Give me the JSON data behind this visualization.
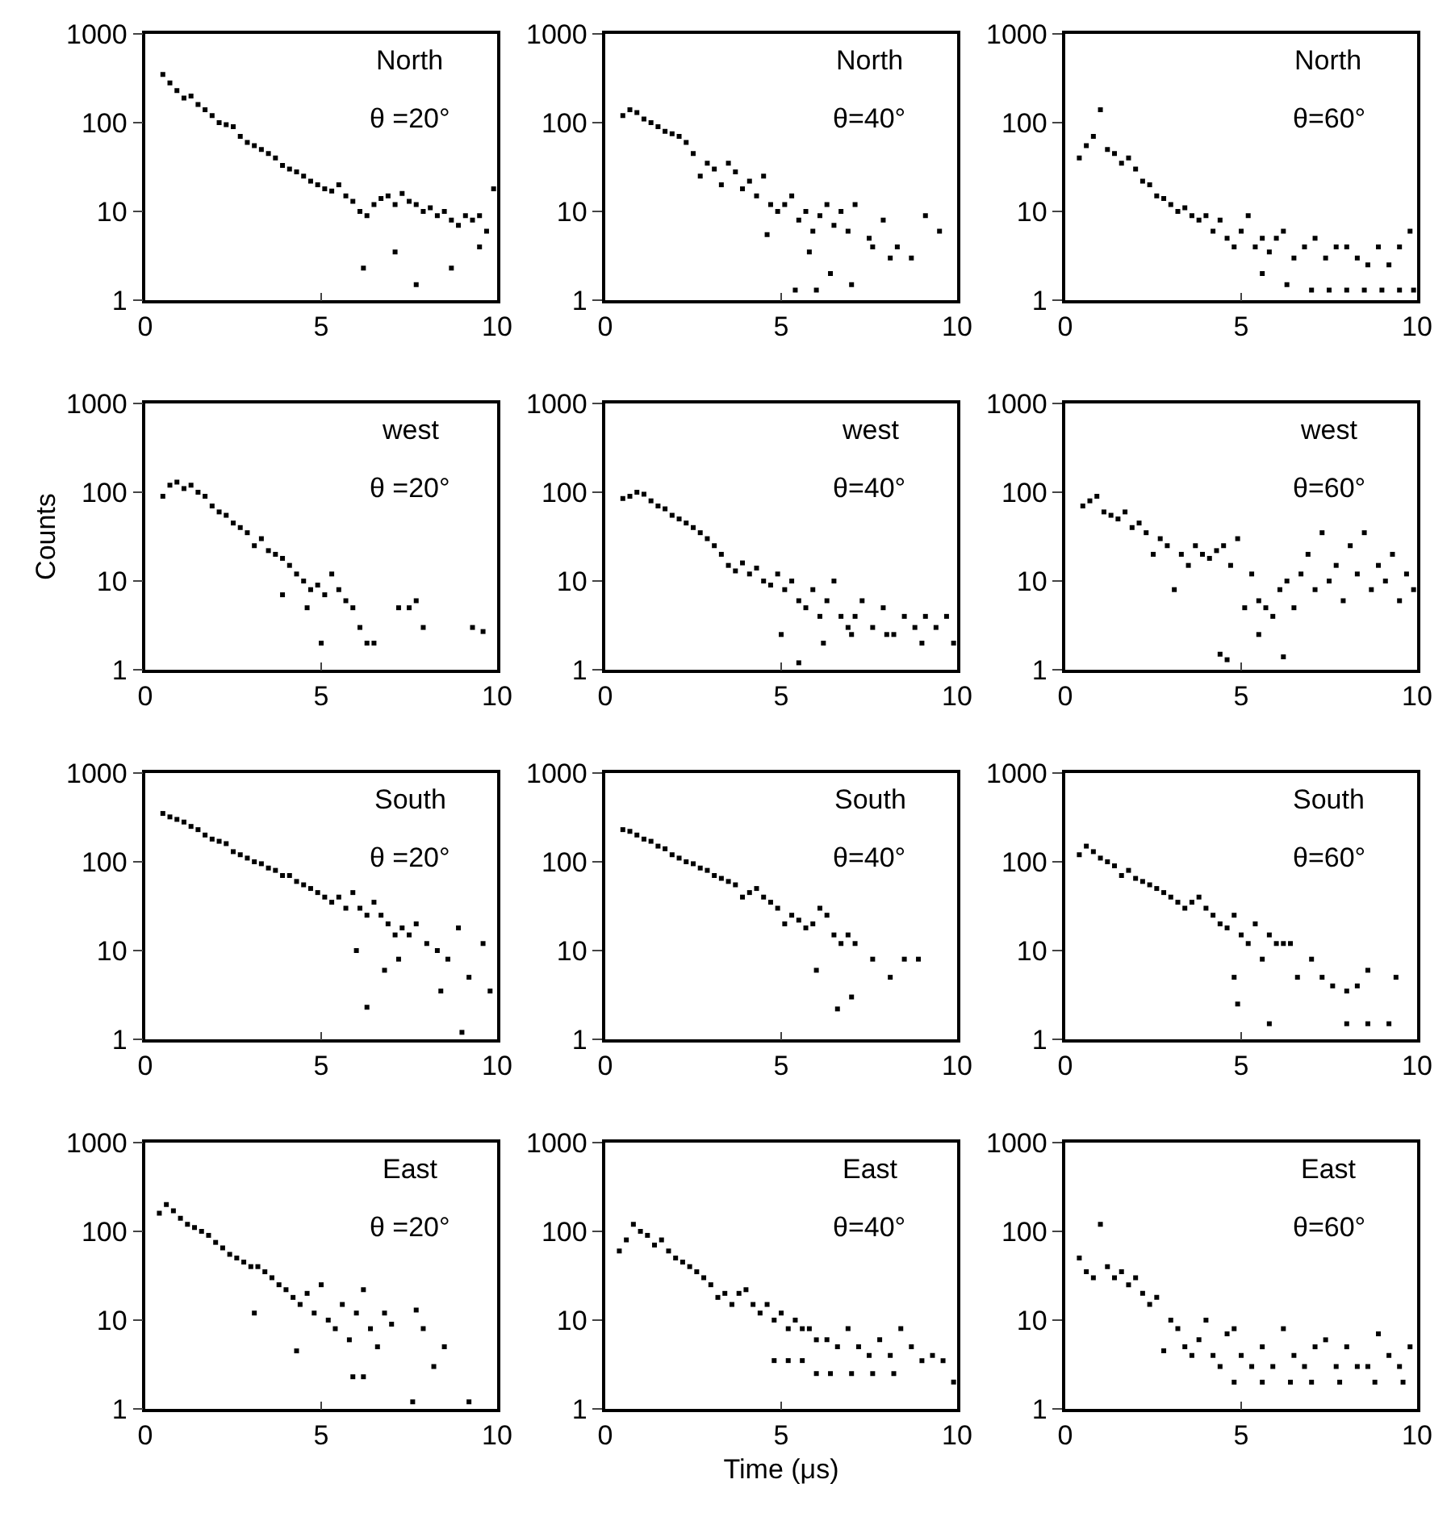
{
  "chart_data": [
    {
      "type": "scatter",
      "annotations": [
        "North",
        "θ =20°"
      ],
      "color": "#000000",
      "marker": "square",
      "log": "y",
      "xlim": [
        0,
        10
      ],
      "ylim": [
        1,
        1000
      ],
      "xticks": [
        0,
        5,
        10
      ],
      "yticks": [
        1,
        10,
        100,
        1000
      ],
      "x": [
        0.5,
        0.7,
        0.9,
        1.1,
        1.3,
        1.5,
        1.7,
        1.9,
        2.1,
        2.3,
        2.5,
        2.7,
        2.9,
        3.1,
        3.3,
        3.5,
        3.7,
        3.9,
        4.1,
        4.3,
        4.5,
        4.7,
        4.9,
        5.1,
        5.3,
        5.5,
        5.7,
        5.9,
        6.1,
        6.3,
        6.5,
        6.7,
        6.9,
        7.1,
        7.3,
        7.5,
        7.7,
        7.9,
        8.1,
        8.3,
        8.5,
        8.7,
        8.9,
        9.1,
        9.3,
        9.5,
        9.7,
        9.9,
        6.2,
        7.1,
        7.7,
        8.7,
        9.5
      ],
      "values": [
        350,
        280,
        230,
        190,
        200,
        160,
        140,
        120,
        100,
        95,
        90,
        70,
        60,
        55,
        50,
        45,
        40,
        33,
        30,
        28,
        25,
        22,
        20,
        18,
        17,
        20,
        15,
        13,
        10,
        9,
        12,
        14,
        15,
        12,
        16,
        13,
        12,
        10,
        11,
        9,
        10,
        8,
        7,
        9,
        8,
        9,
        6,
        18,
        2.3,
        3.5,
        1.5,
        2.3,
        4
      ]
    },
    {
      "type": "scatter",
      "annotations": [
        "North",
        "θ=40°"
      ],
      "color": "#000000",
      "marker": "square",
      "log": "y",
      "xlim": [
        0,
        10
      ],
      "ylim": [
        1,
        1000
      ],
      "xticks": [
        0,
        5,
        10
      ],
      "yticks": [
        1,
        10,
        100,
        1000
      ],
      "x": [
        0.5,
        0.7,
        0.9,
        1.1,
        1.3,
        1.5,
        1.7,
        1.9,
        2.1,
        2.3,
        2.5,
        2.7,
        2.9,
        3.1,
        3.3,
        3.5,
        3.7,
        3.9,
        4.1,
        4.3,
        4.5,
        4.7,
        4.9,
        5.1,
        5.3,
        5.5,
        5.7,
        5.9,
        6.1,
        6.3,
        6.5,
        6.7,
        6.9,
        7.1,
        7.5,
        7.9,
        8.3,
        8.7,
        9.1,
        9.5,
        4.6,
        5.4,
        5.8,
        6.0,
        6.4,
        7.0,
        7.6,
        8.1
      ],
      "values": [
        120,
        140,
        130,
        110,
        100,
        90,
        80,
        75,
        70,
        60,
        45,
        25,
        35,
        30,
        20,
        35,
        28,
        18,
        22,
        15,
        25,
        12,
        10,
        12,
        15,
        8,
        10,
        6,
        9,
        12,
        7,
        10,
        6,
        12,
        5,
        8,
        4,
        3,
        9,
        6,
        5.5,
        1.3,
        3.5,
        1.3,
        2,
        1.5,
        4,
        3
      ]
    },
    {
      "type": "scatter",
      "annotations": [
        "North",
        "θ=60°"
      ],
      "color": "#000000",
      "marker": "square",
      "log": "y",
      "xlim": [
        0,
        10
      ],
      "ylim": [
        1,
        1000
      ],
      "xticks": [
        0,
        5,
        10
      ],
      "yticks": [
        1,
        10,
        100,
        1000
      ],
      "x": [
        0.4,
        0.6,
        0.8,
        1.0,
        1.2,
        1.4,
        1.6,
        1.8,
        2.0,
        2.2,
        2.4,
        2.6,
        2.8,
        3.0,
        3.2,
        3.4,
        3.6,
        3.8,
        4.0,
        4.2,
        4.4,
        4.6,
        4.8,
        5.0,
        5.2,
        5.4,
        5.6,
        5.8,
        6.0,
        6.2,
        6.5,
        6.8,
        7.1,
        7.4,
        7.7,
        8.0,
        8.3,
        8.6,
        8.9,
        9.2,
        9.5,
        9.8,
        7.0,
        7.5,
        8.0,
        8.5,
        9.0,
        9.5,
        9.9,
        5.6,
        6.3
      ],
      "values": [
        40,
        55,
        70,
        140,
        50,
        45,
        35,
        40,
        30,
        22,
        20,
        15,
        14,
        12,
        10,
        11,
        9,
        8,
        9,
        6,
        8,
        5,
        4,
        6,
        9,
        4,
        5,
        3.5,
        5,
        6,
        3,
        4,
        5,
        3,
        4,
        4,
        3,
        2.5,
        4,
        2.5,
        4,
        6,
        1.3,
        1.3,
        1.3,
        1.3,
        1.3,
        1.3,
        1.3,
        2,
        1.5
      ]
    },
    {
      "type": "scatter",
      "annotations": [
        "west",
        "θ =20°"
      ],
      "ylabel": "Counts",
      "color": "#000000",
      "marker": "square",
      "log": "y",
      "xlim": [
        0,
        10
      ],
      "ylim": [
        1,
        1000
      ],
      "xticks": [
        0,
        5,
        10
      ],
      "yticks": [
        1,
        10,
        100,
        1000
      ],
      "x": [
        0.5,
        0.7,
        0.9,
        1.1,
        1.3,
        1.5,
        1.7,
        1.9,
        2.1,
        2.3,
        2.5,
        2.7,
        2.9,
        3.1,
        3.3,
        3.5,
        3.7,
        3.9,
        4.1,
        4.3,
        4.5,
        4.7,
        4.9,
        5.1,
        5.3,
        5.5,
        5.7,
        5.9,
        6.1,
        6.3,
        3.9,
        4.6,
        5.0,
        6.5,
        7.2,
        7.5,
        7.7,
        7.9,
        9.3,
        9.6
      ],
      "values": [
        90,
        120,
        130,
        110,
        120,
        100,
        90,
        70,
        60,
        55,
        45,
        40,
        35,
        25,
        30,
        22,
        20,
        18,
        15,
        12,
        10,
        8,
        9,
        7,
        12,
        8,
        6,
        5,
        3,
        2,
        7,
        5,
        2,
        2,
        5,
        5,
        6,
        3,
        3,
        2.7
      ]
    },
    {
      "type": "scatter",
      "annotations": [
        "west",
        "θ=40°"
      ],
      "color": "#000000",
      "marker": "square",
      "log": "y",
      "xlim": [
        0,
        10
      ],
      "ylim": [
        1,
        1000
      ],
      "xticks": [
        0,
        5,
        10
      ],
      "yticks": [
        1,
        10,
        100,
        1000
      ],
      "x": [
        0.5,
        0.7,
        0.9,
        1.1,
        1.3,
        1.5,
        1.7,
        1.9,
        2.1,
        2.3,
        2.5,
        2.7,
        2.9,
        3.1,
        3.3,
        3.5,
        3.7,
        3.9,
        4.1,
        4.3,
        4.5,
        4.7,
        4.9,
        5.1,
        5.3,
        5.5,
        5.7,
        5.9,
        6.1,
        6.3,
        6.5,
        6.7,
        6.9,
        7.1,
        7.3,
        7.6,
        7.9,
        8.2,
        8.5,
        8.8,
        9.1,
        9.4,
        9.7,
        5.0,
        5.5,
        6.2,
        7.0,
        8.0,
        9.0,
        9.9
      ],
      "values": [
        85,
        90,
        100,
        95,
        80,
        70,
        65,
        55,
        50,
        45,
        40,
        35,
        30,
        25,
        20,
        15,
        13,
        16,
        12,
        14,
        10,
        9,
        12,
        8,
        10,
        6,
        5,
        8,
        4,
        6,
        10,
        4,
        3,
        4,
        6,
        3,
        5,
        2.5,
        4,
        3,
        4,
        3,
        4,
        2.5,
        1.2,
        2,
        2.5,
        2.5,
        2,
        2
      ]
    },
    {
      "type": "scatter",
      "annotations": [
        "west",
        "θ=60°"
      ],
      "color": "#000000",
      "marker": "square",
      "log": "y",
      "xlim": [
        0,
        10
      ],
      "ylim": [
        1,
        1000
      ],
      "xticks": [
        0,
        5,
        10
      ],
      "yticks": [
        1,
        10,
        100,
        1000
      ],
      "x": [
        0.5,
        0.7,
        0.9,
        1.1,
        1.3,
        1.5,
        1.7,
        1.9,
        2.1,
        2.3,
        2.5,
        2.7,
        2.9,
        3.1,
        3.3,
        3.5,
        3.7,
        3.9,
        4.1,
        4.3,
        4.5,
        4.7,
        4.9,
        5.1,
        5.3,
        5.5,
        5.7,
        5.9,
        6.1,
        6.3,
        6.5,
        6.7,
        6.9,
        7.1,
        7.3,
        7.5,
        7.7,
        7.9,
        8.1,
        8.3,
        8.5,
        8.7,
        8.9,
        9.1,
        9.3,
        9.5,
        9.7,
        9.9,
        4.4,
        4.6,
        5.5,
        6.2
      ],
      "values": [
        70,
        80,
        90,
        60,
        55,
        50,
        60,
        40,
        45,
        35,
        20,
        30,
        25,
        8,
        20,
        15,
        25,
        20,
        18,
        22,
        25,
        15,
        30,
        5,
        12,
        6,
        5,
        4,
        8,
        10,
        5,
        12,
        20,
        8,
        35,
        10,
        15,
        6,
        25,
        12,
        35,
        8,
        15,
        10,
        20,
        6,
        12,
        8,
        1.5,
        1.3,
        2.5,
        1.4
      ]
    },
    {
      "type": "scatter",
      "annotations": [
        "South",
        "θ =20°"
      ],
      "color": "#000000",
      "marker": "square",
      "log": "y",
      "xlim": [
        0,
        10
      ],
      "ylim": [
        1,
        1000
      ],
      "xticks": [
        0,
        5,
        10
      ],
      "yticks": [
        1,
        10,
        100,
        1000
      ],
      "x": [
        0.5,
        0.7,
        0.9,
        1.1,
        1.3,
        1.5,
        1.7,
        1.9,
        2.1,
        2.3,
        2.5,
        2.7,
        2.9,
        3.1,
        3.3,
        3.5,
        3.7,
        3.9,
        4.1,
        4.3,
        4.5,
        4.7,
        4.9,
        5.1,
        5.3,
        5.5,
        5.7,
        5.9,
        6.1,
        6.3,
        6.5,
        6.7,
        6.9,
        7.1,
        7.3,
        7.5,
        7.7,
        8.0,
        8.3,
        8.6,
        8.9,
        9.2,
        9.6,
        6.0,
        6.3,
        6.8,
        7.2,
        8.4,
        9.0,
        9.8
      ],
      "values": [
        350,
        320,
        300,
        280,
        250,
        230,
        200,
        180,
        170,
        160,
        130,
        120,
        110,
        100,
        95,
        85,
        80,
        70,
        70,
        60,
        55,
        50,
        45,
        40,
        35,
        40,
        30,
        45,
        30,
        25,
        35,
        25,
        20,
        15,
        18,
        15,
        20,
        12,
        10,
        8,
        18,
        5,
        12,
        10,
        2.3,
        6,
        8,
        3.5,
        1.2,
        3.5
      ]
    },
    {
      "type": "scatter",
      "annotations": [
        "South",
        "θ=40°"
      ],
      "color": "#000000",
      "marker": "square",
      "log": "y",
      "xlim": [
        0,
        10
      ],
      "ylim": [
        1,
        1000
      ],
      "xticks": [
        0,
        5,
        10
      ],
      "yticks": [
        1,
        10,
        100,
        1000
      ],
      "x": [
        0.5,
        0.7,
        0.9,
        1.1,
        1.3,
        1.5,
        1.7,
        1.9,
        2.1,
        2.3,
        2.5,
        2.7,
        2.9,
        3.1,
        3.3,
        3.5,
        3.7,
        3.9,
        4.1,
        4.3,
        4.5,
        4.7,
        4.9,
        5.1,
        5.3,
        5.5,
        5.7,
        5.9,
        6.1,
        6.3,
        6.5,
        6.7,
        6.9,
        7.1,
        7.6,
        8.1,
        8.5,
        8.9,
        6.0,
        6.6,
        7.0
      ],
      "values": [
        230,
        220,
        200,
        180,
        170,
        150,
        140,
        120,
        110,
        100,
        95,
        85,
        80,
        70,
        65,
        60,
        55,
        40,
        45,
        50,
        40,
        35,
        30,
        20,
        25,
        22,
        18,
        20,
        30,
        25,
        15,
        12,
        15,
        12,
        8,
        5,
        8,
        8,
        6,
        2.2,
        3
      ]
    },
    {
      "type": "scatter",
      "annotations": [
        "South",
        "θ=60°"
      ],
      "color": "#000000",
      "marker": "square",
      "log": "y",
      "xlim": [
        0,
        10
      ],
      "ylim": [
        1,
        1000
      ],
      "xticks": [
        0,
        5,
        10
      ],
      "yticks": [
        1,
        10,
        100,
        1000
      ],
      "x": [
        0.4,
        0.6,
        0.8,
        1.0,
        1.2,
        1.4,
        1.6,
        1.8,
        2.0,
        2.2,
        2.4,
        2.6,
        2.8,
        3.0,
        3.2,
        3.4,
        3.6,
        3.8,
        4.0,
        4.2,
        4.4,
        4.6,
        4.8,
        5.0,
        5.2,
        5.4,
        5.6,
        5.8,
        6.0,
        6.2,
        6.4,
        6.6,
        7.0,
        7.3,
        7.6,
        8.0,
        8.3,
        8.6,
        9.4,
        4.8,
        4.9,
        5.8,
        8.0,
        8.6,
        9.2
      ],
      "values": [
        120,
        150,
        130,
        110,
        100,
        90,
        70,
        80,
        65,
        60,
        55,
        50,
        45,
        40,
        35,
        30,
        35,
        40,
        30,
        25,
        20,
        18,
        25,
        15,
        12,
        20,
        8,
        15,
        12,
        12,
        12,
        5,
        8,
        5,
        4,
        3.5,
        4,
        6,
        5,
        5,
        2.5,
        1.5,
        1.5,
        1.5,
        1.5
      ]
    },
    {
      "type": "scatter",
      "annotations": [
        "East",
        "θ =20°"
      ],
      "color": "#000000",
      "marker": "square",
      "log": "y",
      "xlim": [
        0,
        10
      ],
      "ylim": [
        1,
        1000
      ],
      "xticks": [
        0,
        5,
        10
      ],
      "yticks": [
        1,
        10,
        100,
        1000
      ],
      "x": [
        0.4,
        0.6,
        0.8,
        1.0,
        1.2,
        1.4,
        1.6,
        1.8,
        2.0,
        2.2,
        2.4,
        2.6,
        2.8,
        3.0,
        3.2,
        3.4,
        3.6,
        3.8,
        4.0,
        4.2,
        4.4,
        4.6,
        4.8,
        5.0,
        5.2,
        5.4,
        5.6,
        5.8,
        6.0,
        6.2,
        6.4,
        6.6,
        6.8,
        7.0,
        7.7,
        7.9,
        8.2,
        8.5,
        3.1,
        4.3,
        5.9,
        6.2,
        7.6,
        9.2
      ],
      "values": [
        160,
        200,
        170,
        140,
        120,
        110,
        100,
        90,
        75,
        65,
        55,
        50,
        45,
        40,
        40,
        35,
        30,
        25,
        22,
        18,
        15,
        20,
        12,
        25,
        10,
        8,
        15,
        6,
        12,
        22,
        8,
        5,
        12,
        9,
        13,
        8,
        3,
        5,
        12,
        4.5,
        2.3,
        2.3,
        1.2,
        1.2
      ]
    },
    {
      "type": "scatter",
      "annotations": [
        "East",
        "θ=40°"
      ],
      "xlabel": "Time (μs)",
      "color": "#000000",
      "marker": "square",
      "log": "y",
      "xlim": [
        0,
        10
      ],
      "ylim": [
        1,
        1000
      ],
      "xticks": [
        0,
        5,
        10
      ],
      "yticks": [
        1,
        10,
        100,
        1000
      ],
      "x": [
        0.4,
        0.6,
        0.8,
        1.0,
        1.2,
        1.4,
        1.6,
        1.8,
        2.0,
        2.2,
        2.4,
        2.6,
        2.8,
        3.0,
        3.2,
        3.4,
        3.6,
        3.8,
        4.0,
        4.2,
        4.4,
        4.6,
        4.8,
        5.0,
        5.2,
        5.4,
        5.6,
        5.8,
        6.0,
        6.3,
        6.6,
        6.9,
        7.2,
        7.5,
        7.8,
        8.1,
        8.4,
        8.7,
        9.0,
        9.3,
        9.6,
        9.9,
        4.8,
        5.2,
        5.6,
        6.0,
        6.4,
        7.0,
        7.6,
        8.2
      ],
      "values": [
        60,
        80,
        120,
        100,
        90,
        70,
        80,
        60,
        50,
        45,
        40,
        35,
        30,
        25,
        18,
        20,
        15,
        20,
        22,
        15,
        12,
        15,
        10,
        12,
        8,
        10,
        8,
        8,
        6,
        6,
        5,
        8,
        5,
        4,
        6,
        4,
        8,
        5,
        3.5,
        4,
        3.5,
        2,
        3.5,
        3.5,
        3.5,
        2.5,
        2.5,
        2.5,
        2.5,
        2.5
      ]
    },
    {
      "type": "scatter",
      "annotations": [
        "East",
        "θ=60°"
      ],
      "color": "#000000",
      "marker": "square",
      "log": "y",
      "xlim": [
        0,
        10
      ],
      "ylim": [
        1,
        1000
      ],
      "xticks": [
        0,
        5,
        10
      ],
      "yticks": [
        1,
        10,
        100,
        1000
      ],
      "x": [
        0.4,
        0.6,
        0.8,
        1.0,
        1.2,
        1.4,
        1.6,
        1.8,
        2.0,
        2.2,
        2.4,
        2.6,
        2.8,
        3.0,
        3.2,
        3.4,
        3.6,
        3.8,
        4.0,
        4.2,
        4.4,
        4.6,
        4.8,
        5.0,
        5.3,
        5.6,
        5.9,
        6.2,
        6.5,
        6.8,
        7.1,
        7.4,
        7.7,
        8.0,
        8.3,
        8.6,
        8.9,
        9.2,
        9.5,
        9.8,
        4.8,
        5.6,
        6.4,
        7.0,
        7.8,
        8.8,
        9.6
      ],
      "values": [
        50,
        35,
        30,
        120,
        40,
        30,
        35,
        25,
        30,
        20,
        15,
        18,
        4.5,
        10,
        8,
        5,
        4,
        6,
        10,
        4,
        3,
        7,
        8,
        4,
        3,
        5,
        3,
        8,
        4,
        3,
        5,
        6,
        3,
        5,
        3,
        3,
        7,
        4,
        3,
        5,
        2,
        2,
        2,
        2,
        2,
        2,
        2
      ]
    }
  ]
}
